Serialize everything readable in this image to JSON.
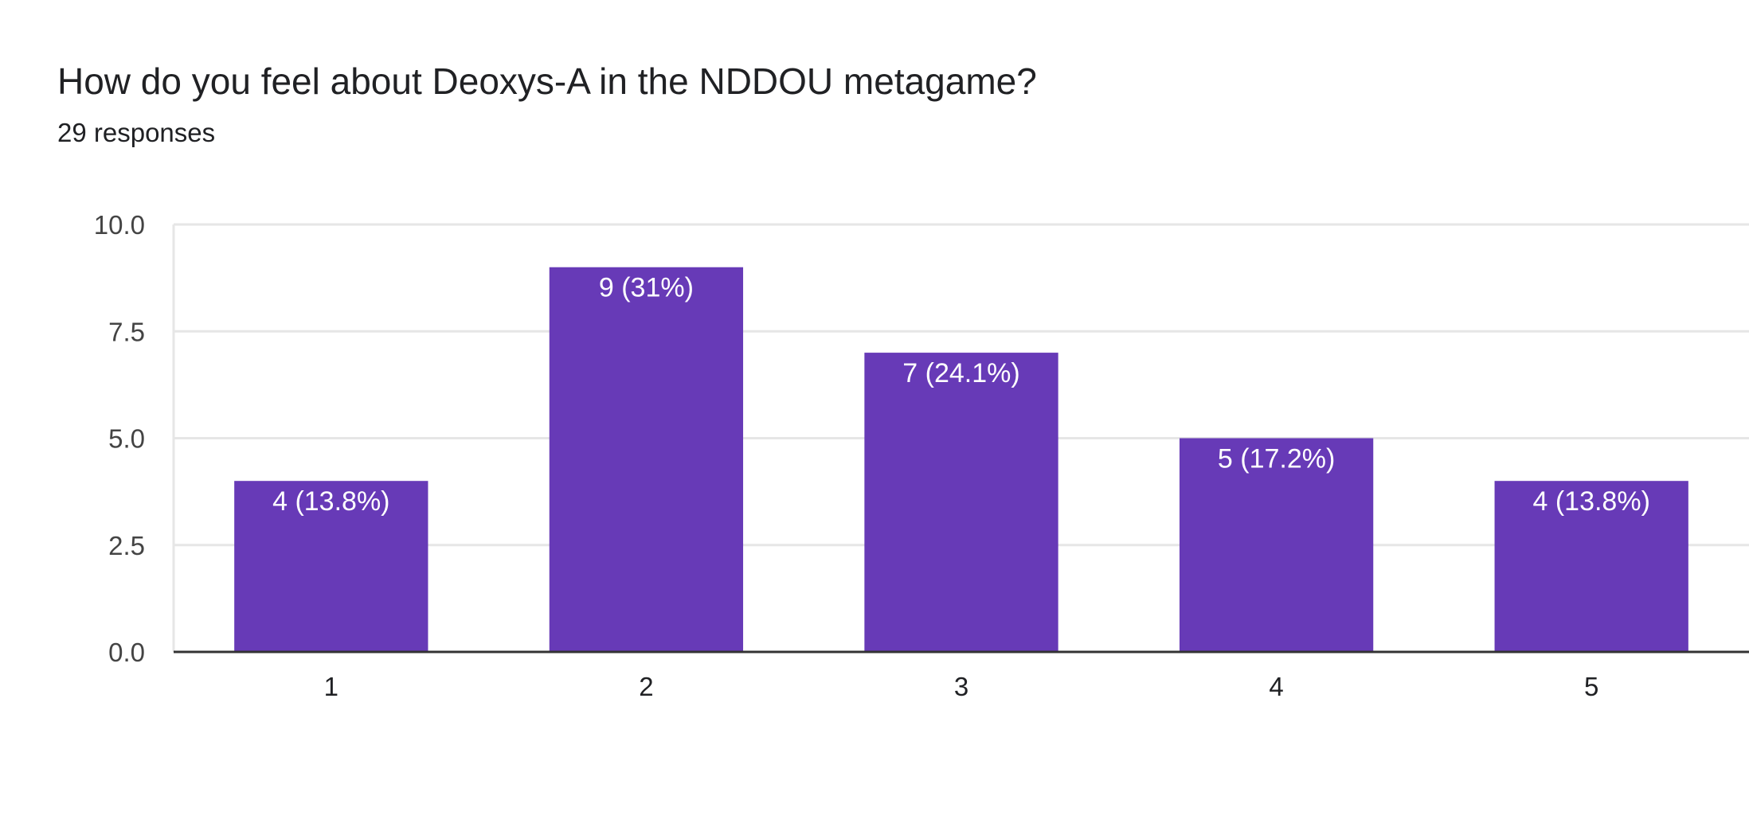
{
  "question": {
    "title": "How do you feel about Deoxys-A in the NDDOU metagame?",
    "responses": "29 responses"
  },
  "chart_data": {
    "type": "bar",
    "categories": [
      "1",
      "2",
      "3",
      "4",
      "5"
    ],
    "values": [
      4,
      9,
      7,
      5,
      4
    ],
    "data_labels": [
      "4 (13.8%)",
      "9 (31%)",
      "7 (24.1%)",
      "5 (17.2%)",
      "4 (13.8%)"
    ],
    "yticks": [
      "0.0",
      "2.5",
      "5.0",
      "7.5",
      "10.0"
    ],
    "ylim": [
      0,
      10
    ],
    "grid": true,
    "bar_color": "#673ab7"
  }
}
